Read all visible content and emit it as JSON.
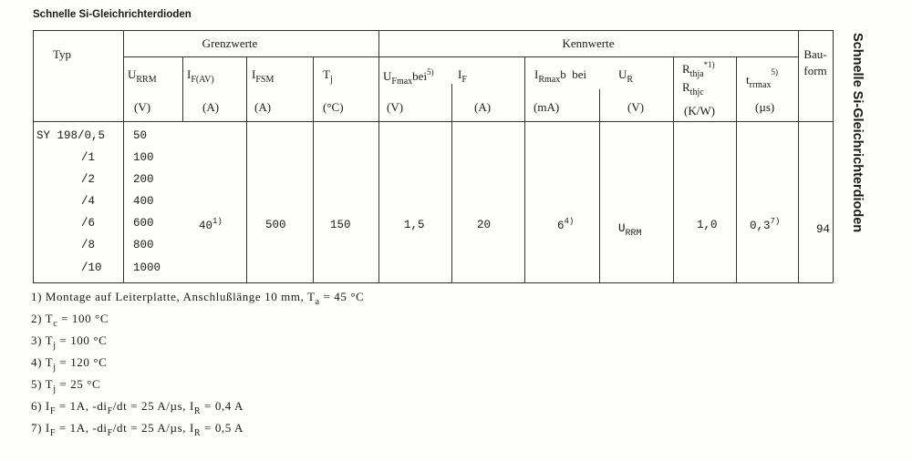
{
  "title": "Schnelle Si-Gleichrichterdioden",
  "side_title": "Schnelle Si-Gleichrichterdioden",
  "header": {
    "typ": "Typ",
    "grenzwerte": "Grenzwerte",
    "kennwerte": "Kennwerte",
    "bauform": [
      "Bau-",
      "form"
    ],
    "cols": [
      {
        "sym": "U",
        "sub": "RRM",
        "unit": "(V)"
      },
      {
        "sym": "I",
        "sub": "F(AV)",
        "unit": "(A)"
      },
      {
        "sym": "I",
        "sub": "FSM",
        "unit": "(A)"
      },
      {
        "sym": "T",
        "sub": "j",
        "unit": "(°C)"
      },
      {
        "sym": "U",
        "sub": "Fmax",
        "after": "bei",
        "sup": "5)",
        "unit": "(V)"
      },
      {
        "sym": "I",
        "sub": "F",
        "unit": "(A)"
      },
      {
        "sym": "I",
        "sub": "Rmax",
        "after": "b  bei",
        "unit": "(mA)"
      },
      {
        "sym": "U",
        "sub": "R",
        "unit": "(V)"
      },
      {
        "sym": "R",
        "sub": "thja",
        "sup": "*1)",
        "sym2": "R",
        "sub2": "thjc",
        "unit": "(K/W)"
      },
      {
        "sym": "t",
        "sub": "rrmax",
        "sup": "5)",
        "unit": "(µs)"
      }
    ]
  },
  "rows": [
    {
      "typ": "SY 198/0,5",
      "urrm": "50"
    },
    {
      "typ": "/1",
      "urrm": "100"
    },
    {
      "typ": "/2",
      "urrm": "200"
    },
    {
      "typ": "/4",
      "urrm": "400"
    },
    {
      "typ": "/6",
      "urrm": "600"
    },
    {
      "typ": "/8",
      "urrm": "800"
    },
    {
      "typ": "/10",
      "urrm": "1000"
    }
  ],
  "common": {
    "ifav": "40",
    "ifav_note": "1)",
    "ifsm": "500",
    "tj": "150",
    "ufmax": "1,5",
    "if": "20",
    "irmax": "6",
    "irmax_note": "4)",
    "ur_sym": "U",
    "ur_sub": "RRM",
    "rth": "1,0",
    "trr": "0,3",
    "trr_note": "7)",
    "bauform": "94"
  },
  "footnotes": [
    [
      "1) Montage auf Leiterplatte, Anschlußlänge 10 mm, T",
      "a",
      " = 45 °C"
    ],
    [
      "2) T",
      "c",
      " = 100 °C"
    ],
    [
      "3) T",
      "j",
      " = 100 °C"
    ],
    [
      "4) T",
      "j",
      " = 120 °C"
    ],
    [
      "5) T",
      "j",
      " = 25 °C"
    ],
    [
      "6) I",
      "F",
      " = 1A, -di",
      "F",
      "/dt = 25 A/µs, I",
      "R",
      " = 0,4 A"
    ],
    [
      "7) I",
      "F",
      " = 1A, -di",
      "F",
      "/dt = 25 A/µs, I",
      "R",
      " = 0,5 A"
    ]
  ]
}
